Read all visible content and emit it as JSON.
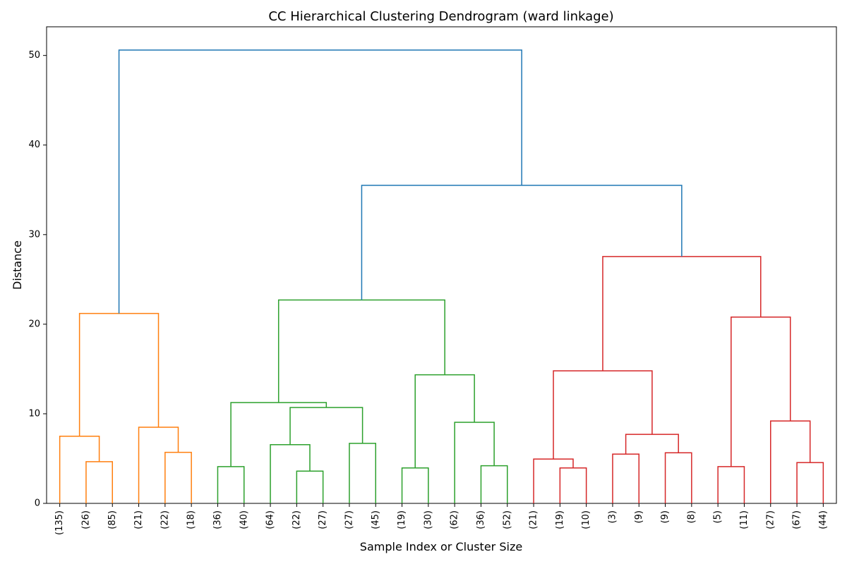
{
  "chart_data": {
    "type": "dendrogram",
    "title": "CC Hierarchical Clustering Dendrogram (ward linkage)",
    "x_label": "Sample Index or Cluster Size",
    "y_label": "Distance",
    "ylim": [
      0,
      53.2
    ],
    "yticks": [
      0,
      10,
      20,
      30,
      40,
      50
    ],
    "leaves": [
      "(135)",
      "(26)",
      "(85)",
      "(21)",
      "(22)",
      "(18)",
      "(36)",
      "(40)",
      "(64)",
      "(22)",
      "(27)",
      "(27)",
      "(45)",
      "(19)",
      "(30)",
      "(62)",
      "(36)",
      "(52)",
      "(21)",
      "(19)",
      "(10)",
      "(3)",
      "(9)",
      "(9)",
      "(8)",
      "(5)",
      "(11)",
      "(27)",
      "(67)",
      "(44)"
    ],
    "merges": [
      {
        "left": 1,
        "right": 2,
        "height": 4.65,
        "color": "#ff7f0e"
      },
      {
        "left": 0,
        "right": 30,
        "height": 7.5,
        "color": "#ff7f0e"
      },
      {
        "left": 4,
        "right": 5,
        "height": 5.7,
        "color": "#ff7f0e"
      },
      {
        "left": 3,
        "right": 32,
        "height": 8.5,
        "color": "#ff7f0e"
      },
      {
        "left": 31,
        "right": 33,
        "height": 21.2,
        "color": "#ff7f0e"
      },
      {
        "left": 6,
        "right": 7,
        "height": 4.1,
        "color": "#2ca02c"
      },
      {
        "left": 9,
        "right": 10,
        "height": 3.6,
        "color": "#2ca02c"
      },
      {
        "left": 8,
        "right": 36,
        "height": 6.55,
        "color": "#2ca02c"
      },
      {
        "left": 11,
        "right": 12,
        "height": 6.7,
        "color": "#2ca02c"
      },
      {
        "left": 37,
        "right": 38,
        "height": 10.7,
        "color": "#2ca02c"
      },
      {
        "left": 35,
        "right": 39,
        "height": 11.25,
        "color": "#2ca02c"
      },
      {
        "left": 13,
        "right": 14,
        "height": 3.95,
        "color": "#2ca02c"
      },
      {
        "left": 16,
        "right": 17,
        "height": 4.2,
        "color": "#2ca02c"
      },
      {
        "left": 15,
        "right": 42,
        "height": 9.05,
        "color": "#2ca02c"
      },
      {
        "left": 41,
        "right": 43,
        "height": 14.35,
        "color": "#2ca02c"
      },
      {
        "left": 40,
        "right": 44,
        "height": 22.7,
        "color": "#2ca02c"
      },
      {
        "left": 19,
        "right": 20,
        "height": 3.95,
        "color": "#d62728"
      },
      {
        "left": 18,
        "right": 46,
        "height": 4.95,
        "color": "#d62728"
      },
      {
        "left": 21,
        "right": 22,
        "height": 5.5,
        "color": "#d62728"
      },
      {
        "left": 23,
        "right": 24,
        "height": 5.65,
        "color": "#d62728"
      },
      {
        "left": 48,
        "right": 49,
        "height": 7.7,
        "color": "#d62728"
      },
      {
        "left": 47,
        "right": 50,
        "height": 14.8,
        "color": "#d62728"
      },
      {
        "left": 25,
        "right": 26,
        "height": 4.1,
        "color": "#d62728"
      },
      {
        "left": 28,
        "right": 29,
        "height": 4.55,
        "color": "#d62728"
      },
      {
        "left": 27,
        "right": 53,
        "height": 9.2,
        "color": "#d62728"
      },
      {
        "left": 52,
        "right": 54,
        "height": 20.8,
        "color": "#d62728"
      },
      {
        "left": 51,
        "right": 55,
        "height": 27.55,
        "color": "#d62728"
      },
      {
        "left": 45,
        "right": 56,
        "height": 35.5,
        "color": "#1f77b4"
      },
      {
        "left": 34,
        "right": 57,
        "height": 50.6,
        "color": "#1f77b4"
      }
    ]
  }
}
